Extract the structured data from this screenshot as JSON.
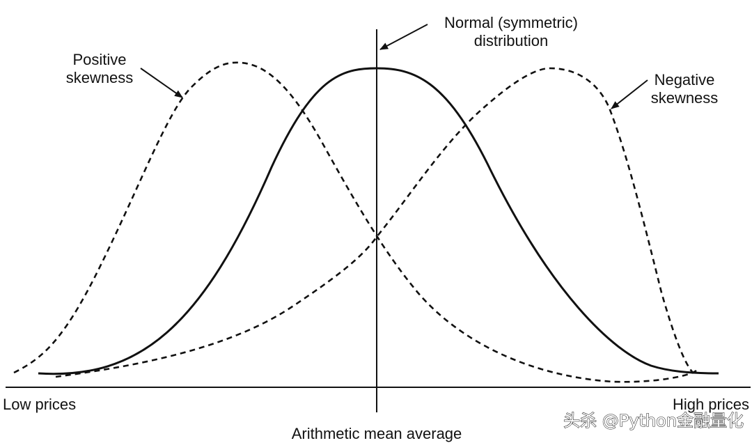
{
  "labels": {
    "normal_line1": "Normal (symmetric)",
    "normal_line2": "distribution",
    "positive_line1": "Positive",
    "positive_line2": "skewness",
    "negative_line1": "Negative",
    "negative_line2": "skewness",
    "x_left": "Low prices",
    "x_right": "High prices",
    "x_center": "Arithmetic mean average"
  },
  "watermark": "头杀 @Python金融量化",
  "curves": [
    {
      "name": "normal",
      "style": "solid"
    },
    {
      "name": "positive-skewness",
      "style": "dashed"
    },
    {
      "name": "negative-skewness",
      "style": "dashed"
    }
  ]
}
